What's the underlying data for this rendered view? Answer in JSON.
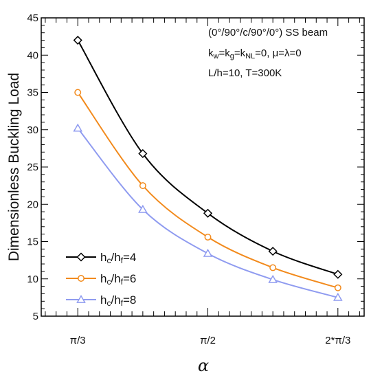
{
  "chart_data": {
    "type": "line",
    "xlabel": "α",
    "ylabel": "Dimensionless Buckling Load",
    "x": [
      1.0472,
      1.309,
      1.5708,
      1.8326,
      2.0944
    ],
    "x_tick_values": [
      1.0472,
      1.5708,
      2.0944
    ],
    "x_tick_labels": [
      "π/3",
      "π/2",
      "2*π/3"
    ],
    "xlim": [
      0.9,
      2.2
    ],
    "ylim": [
      5,
      45
    ],
    "y_ticks": [
      5,
      10,
      15,
      20,
      25,
      30,
      35,
      40,
      45
    ],
    "grid": false,
    "legend_position": "bottom-left",
    "annotations": {
      "line1": "(0°/90°/c/90°/0°) SS beam",
      "line2": {
        "k1": "k",
        "k1_sub": "w",
        "eq1": "=k",
        "k2_sub": "g",
        "eq2": "=k",
        "k3_sub": "NL",
        "rest": "=0, μ=λ=0"
      },
      "line3": "L/h=10, T=300K"
    },
    "series": [
      {
        "name_main": "h",
        "name_sub1": "c",
        "name_mid": "/h",
        "name_sub2": "f",
        "name_tail": "=4",
        "values": [
          42.0,
          26.8,
          18.8,
          13.7,
          10.6
        ],
        "color": "#000000",
        "marker": "diamond"
      },
      {
        "name_main": "h",
        "name_sub1": "c",
        "name_mid": "/h",
        "name_sub2": "f",
        "name_tail": "=6",
        "values": [
          35.0,
          22.5,
          15.6,
          11.5,
          8.8
        ],
        "color": "#f28a1c",
        "marker": "circle"
      },
      {
        "name_main": "h",
        "name_sub1": "c",
        "name_mid": "/h",
        "name_sub2": "f",
        "name_tail": "=8",
        "values": [
          30.2,
          19.3,
          13.4,
          9.9,
          7.5
        ],
        "color": "#8f9bf0",
        "marker": "triangle"
      }
    ]
  }
}
